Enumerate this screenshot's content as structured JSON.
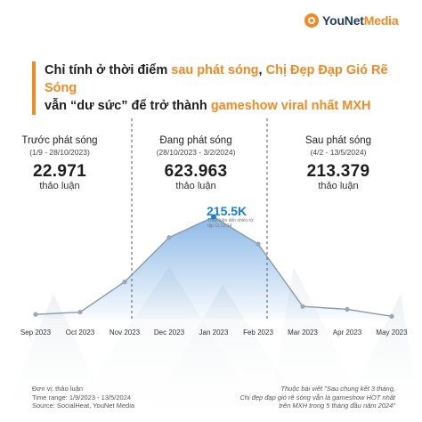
{
  "brand": {
    "name_main": "YouNet",
    "name_accent": "Media"
  },
  "headline": {
    "line1_a": "Chỉ tính ở thời điểm ",
    "line1_b": "sau phát sóng",
    "line1_c": ", ",
    "line1_d": "Chị Đẹp Đạp Gió Rẽ Sóng",
    "line2_a": "vẫn “dư sức” để trở thành ",
    "line2_b": "gameshow viral nhất MXH"
  },
  "colors": {
    "accent": "#f08a24",
    "line": "#8c9aa8",
    "peak": "#1d7fd0",
    "area_top": "#2f7fd4"
  },
  "periods": [
    {
      "title": "Trước phát sóng",
      "range": "(1/9 - 28/10/2023)",
      "value": "22.971",
      "unit": "thảo luận"
    },
    {
      "title": "Đang phát sóng",
      "range": "(28/10/2023 - 3/2/2024)",
      "value": "623.963",
      "unit": "thảo luận"
    },
    {
      "title": "Sau phát sóng",
      "range": "(4/2 - 13/5/2024)",
      "value": "213.379",
      "unit": "thảo luận"
    }
  ],
  "peak": {
    "value_label": "215.5K",
    "note": "Thảo luận đến nhiều từ tập 11,12,14"
  },
  "chart_data": {
    "type": "line",
    "title": "",
    "xlabel": "",
    "ylabel": "",
    "categories": [
      "Sep 2023",
      "Oct 2023",
      "Nov 2023",
      "Dec 2023",
      "Jan 2023",
      "Feb 2023",
      "Mar 2023",
      "Apr 2023",
      "May 2023"
    ],
    "series": [
      {
        "values": [
          9000,
          14000,
          78000,
          172000,
          215500,
          158000,
          26000,
          20000,
          5000
        ]
      }
    ],
    "ylim": [
      0,
      260000
    ],
    "grid": false,
    "annotations": [
      "215.5K"
    ]
  },
  "footer": {
    "left_lines": [
      "Đơn vị: thảo luận",
      "Time range: 1/9/2023 - 13/5/2024",
      "Source: SocialHeat, YouNet Media"
    ],
    "right_lines": [
      "Thuộc bài viết \"Sau chung kết 3 tháng,",
      "Chị đẹp đạp gió rẽ sóng vẫn là gameshow HOT nhất",
      "trên MXH trong 5 tháng đầu năm 2024\""
    ]
  }
}
